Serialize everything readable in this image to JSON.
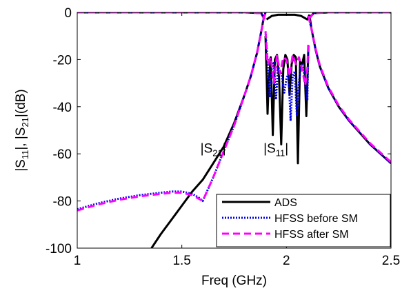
{
  "chart_data": {
    "type": "line",
    "xlabel": "Freq (GHz)",
    "ylabel_parts": [
      "|S",
      "11",
      "|, |S",
      "21",
      "|(dB)"
    ],
    "xlim": [
      1,
      2.5
    ],
    "ylim": [
      -100,
      0
    ],
    "xticks": [
      1,
      1.5,
      2,
      2.5
    ],
    "xtick_labels": [
      "1",
      "1.5",
      "2",
      "2.5"
    ],
    "yticks": [
      0,
      -20,
      -40,
      -60,
      -80,
      -100
    ],
    "ytick_labels": [
      "0",
      "-20",
      "-40",
      "-60",
      "-80",
      "-100"
    ],
    "grid": false,
    "legend_position": "bottom-right",
    "annotations": [
      {
        "parts": [
          "|S",
          "21",
          "|"
        ],
        "x": 1.65,
        "y": -59.5
      },
      {
        "parts": [
          "|S",
          "11",
          "|"
        ],
        "x": 1.95,
        "y": -59.5
      }
    ],
    "series": [
      {
        "name": "ADS",
        "color": "#000000",
        "style": "solid",
        "segments": [
          {
            "x": [
              1.355,
              1.4,
              1.45,
              1.5,
              1.55,
              1.6,
              1.65,
              1.7,
              1.75,
              1.8,
              1.83,
              1.86,
              1.88,
              1.89,
              1.9
            ],
            "y": [
              -100,
              -94,
              -88,
              -82,
              -76,
              -71,
              -64,
              -57,
              -47,
              -35,
              -27,
              -17,
              -8,
              -3,
              0
            ]
          },
          {
            "x": [
              1.9,
              1.905,
              1.91,
              1.915,
              1.925,
              1.935,
              1.945,
              1.955,
              1.965,
              1.975,
              1.985,
              1.995,
              2.005,
              2.015,
              2.025,
              2.035,
              2.045,
              2.055,
              2.065,
              2.075,
              2.085,
              2.095,
              2.1,
              2.105
            ],
            "y": [
              -10,
              -25,
              -43,
              -30,
              -19,
              -52,
              -20,
              -18,
              -28,
              -56,
              -24,
              -18,
              -20,
              -35,
              -22,
              -18,
              -19,
              -64,
              -21,
              -22,
              -18,
              -44,
              -30,
              -14
            ]
          },
          {
            "x": [
              1.905,
              1.93,
              1.96,
              2.0,
              2.04,
              2.07,
              2.1,
              2.11
            ],
            "y": [
              -3,
              -1.5,
              -1,
              -1,
              -1,
              -1.5,
              -3,
              -1
            ]
          },
          {
            "x": [
              2.11,
              2.12,
              2.14,
              2.16,
              2.2,
              2.25,
              2.3,
              2.35,
              2.4,
              2.45,
              2.5
            ],
            "y": [
              -1,
              -7,
              -16,
              -23,
              -32,
              -40,
              -46,
              -51,
              -56,
              -60,
              -64
            ]
          },
          {
            "x": [
              1.0,
              1.2,
              1.4,
              1.6,
              1.8,
              1.88,
              1.895
            ],
            "y": [
              0,
              0,
              0,
              0,
              0,
              -0.3,
              -3
            ]
          },
          {
            "x": [
              2.105,
              2.13,
              2.2,
              2.3,
              2.4,
              2.5
            ],
            "y": [
              -3,
              -0.3,
              0,
              0,
              0,
              0
            ]
          }
        ]
      },
      {
        "name": "HFSS before SM",
        "color": "#0000ee",
        "style": "dotted",
        "segments": [
          {
            "x": [
              1.0,
              1.1,
              1.2,
              1.3,
              1.4,
              1.45,
              1.5,
              1.55,
              1.58,
              1.6,
              1.62,
              1.65,
              1.7,
              1.75,
              1.8,
              1.83,
              1.86,
              1.88,
              1.89,
              1.9
            ],
            "y": [
              -83.5,
              -81,
              -79,
              -77.5,
              -76.5,
              -76,
              -76,
              -77,
              -78.5,
              -80,
              -76,
              -70,
              -59,
              -48,
              -35,
              -27,
              -17,
              -8,
              -3,
              0
            ]
          },
          {
            "x": [
              1.9,
              1.91,
              1.92,
              1.93,
              1.94,
              1.95,
              1.96,
              1.975,
              1.99,
              2.0,
              2.01,
              2.02,
              2.03,
              2.04,
              2.05,
              2.06,
              2.07,
              2.08,
              2.09,
              2.1,
              2.105
            ],
            "y": [
              -8,
              -20,
              -36,
              -24,
              -21,
              -37,
              -23,
              -26,
              -34,
              -28,
              -26,
              -46,
              -27,
              -25,
              -44,
              -30,
              -22,
              -23,
              -30,
              -37,
              -14
            ]
          },
          {
            "x": [
              1.0,
              1.4,
              1.8,
              1.88,
              1.895
            ],
            "y": [
              0,
              0,
              0,
              -0.3,
              -3
            ]
          },
          {
            "x": [
              2.105,
              2.13,
              2.2,
              2.3,
              2.4,
              2.5
            ],
            "y": [
              -3,
              -0.3,
              0,
              0,
              0,
              0
            ]
          },
          {
            "x": [
              2.105,
              2.12,
              2.14,
              2.16,
              2.2,
              2.25,
              2.3,
              2.35,
              2.4,
              2.45,
              2.5
            ],
            "y": [
              -1.5,
              -7,
              -16,
              -23,
              -32,
              -40,
              -46,
              -51,
              -56,
              -60,
              -64
            ]
          }
        ]
      },
      {
        "name": "HFSS after SM",
        "color": "#ff00ff",
        "style": "dashed",
        "segments": [
          {
            "x": [
              1.0,
              1.1,
              1.2,
              1.3,
              1.4,
              1.45,
              1.5,
              1.55,
              1.58,
              1.6,
              1.62,
              1.65,
              1.7,
              1.75,
              1.8,
              1.83,
              1.86,
              1.88,
              1.89,
              1.9
            ],
            "y": [
              -84,
              -81.5,
              -79.5,
              -78,
              -77,
              -76.5,
              -76.5,
              -77.5,
              -79,
              -80,
              -76,
              -70,
              -59,
              -48,
              -35,
              -27,
              -17,
              -8,
              -3,
              0
            ]
          },
          {
            "x": [
              1.9,
              1.91,
              1.925,
              1.94,
              1.955,
              1.97,
              1.985,
              2.0,
              2.015,
              2.03,
              2.045,
              2.06,
              2.075,
              2.09,
              2.1,
              2.105
            ],
            "y": [
              -8,
              -22,
              -19,
              -30,
              -18,
              -26,
              -19,
              -20,
              -27,
              -18,
              -22,
              -19,
              -24,
              -31,
              -24,
              -12
            ]
          },
          {
            "x": [
              1.0,
              1.4,
              1.8,
              1.88,
              1.895
            ],
            "y": [
              0,
              0,
              0,
              -0.3,
              -3
            ]
          },
          {
            "x": [
              2.105,
              2.13,
              2.2,
              2.3,
              2.4,
              2.5
            ],
            "y": [
              -3,
              -0.3,
              0,
              0,
              0,
              0
            ]
          },
          {
            "x": [
              2.105,
              2.12,
              2.14,
              2.16,
              2.2,
              2.25,
              2.3,
              2.35,
              2.4,
              2.45,
              2.5
            ],
            "y": [
              -1.5,
              -7,
              -15.5,
              -22.5,
              -31.5,
              -39.5,
              -45.5,
              -50.5,
              -55.5,
              -59.5,
              -63.5
            ]
          }
        ]
      }
    ]
  }
}
